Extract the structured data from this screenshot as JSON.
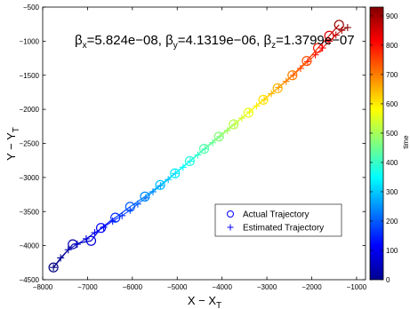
{
  "chart_data": {
    "type": "scatter",
    "title": "",
    "annotation": {
      "parts": [
        {
          "t": "β",
          "sub": false
        },
        {
          "t": "x",
          "sub": true
        },
        {
          "t": "=5.824e−08, ",
          "sub": false
        },
        {
          "t": "β",
          "sub": false
        },
        {
          "t": "y",
          "sub": true
        },
        {
          "t": "=4.1319e−06, ",
          "sub": false
        },
        {
          "t": "β",
          "sub": false
        },
        {
          "t": "z",
          "sub": true
        },
        {
          "t": "=1.3799e−07",
          "sub": false
        }
      ]
    },
    "xlabel": {
      "main": "X − X",
      "sub": "T"
    },
    "ylabel": {
      "main": "Y − Y",
      "sub": "T"
    },
    "xlim": [
      -8000,
      -800
    ],
    "ylim": [
      -4500,
      -500
    ],
    "xticks": [
      -8000,
      -7000,
      -6000,
      -5000,
      -4000,
      -3000,
      -2000,
      -1000
    ],
    "yticks": [
      -4500,
      -4000,
      -3500,
      -3000,
      -2500,
      -2000,
      -1500,
      -1000,
      -500
    ],
    "xtick_labels": [
      "−8000",
      "−7000",
      "−6000",
      "−5000",
      "−4000",
      "−3000",
      "−2000",
      "−1000"
    ],
    "ytick_labels": [
      "−4500",
      "−4000",
      "−3500",
      "−3000",
      "−2500",
      "−2000",
      "−1500",
      "−1000",
      "−500"
    ],
    "grid": false,
    "legend": {
      "placement": "lower-right",
      "entries": [
        {
          "label": "Actual Trajectory",
          "marker": "circle",
          "color": "#0000ff"
        },
        {
          "label": "Estimated Trajectory",
          "marker": "plus",
          "color": "#0000ff"
        }
      ]
    },
    "colorbar": {
      "label": "time",
      "range": [
        0,
        930
      ],
      "ticks": [
        0,
        100,
        200,
        300,
        400,
        500,
        600,
        700,
        800,
        900
      ],
      "tick_labels": [
        "0",
        "100",
        "200",
        "300",
        "400",
        "500",
        "600",
        "700",
        "800",
        "900"
      ],
      "colormap": "jet"
    },
    "series": [
      {
        "name": "Actual Trajectory",
        "marker": "circle",
        "x": [
          -7760,
          -7330,
          -6920,
          -6700,
          -6380,
          -6050,
          -5720,
          -5380,
          -5050,
          -4720,
          -4400,
          -4070,
          -3740,
          -3410,
          -3080,
          -2760,
          -2430,
          -2110,
          -1860,
          -1610,
          -1390
        ],
        "y": [
          -4320,
          -3980,
          -3930,
          -3740,
          -3590,
          -3430,
          -3280,
          -3110,
          -2940,
          -2760,
          -2580,
          -2400,
          -2220,
          -2050,
          -1860,
          -1690,
          -1500,
          -1290,
          -1100,
          -920,
          -760
        ],
        "t": [
          0,
          40,
          80,
          110,
          155,
          200,
          245,
          290,
          335,
          380,
          425,
          470,
          515,
          560,
          605,
          650,
          695,
          740,
          790,
          840,
          910
        ]
      },
      {
        "name": "Estimated Trajectory",
        "marker": "plus",
        "x": [
          -7760,
          -7600,
          -7430,
          -7230,
          -7030,
          -6840,
          -6640,
          -6440,
          -6230,
          -6050,
          -5880,
          -5700,
          -5540,
          -5370,
          -5200,
          -5040,
          -4870,
          -4710,
          -4540,
          -4380,
          -4210,
          -4050,
          -3880,
          -3720,
          -3560,
          -3390,
          -3230,
          -3060,
          -2900,
          -2740,
          -2570,
          -2410,
          -2250,
          -2090,
          -1920,
          -1760,
          -1610,
          -1460,
          -1330,
          -1200
        ],
        "y": [
          -4320,
          -4180,
          -4060,
          -3980,
          -3900,
          -3810,
          -3730,
          -3640,
          -3560,
          -3480,
          -3390,
          -3300,
          -3210,
          -3120,
          -3030,
          -2940,
          -2850,
          -2760,
          -2670,
          -2580,
          -2490,
          -2400,
          -2310,
          -2220,
          -2130,
          -2040,
          -1950,
          -1860,
          -1770,
          -1680,
          -1590,
          -1500,
          -1400,
          -1300,
          -1200,
          -1100,
          -1000,
          -910,
          -840,
          -800
        ],
        "t": [
          0,
          20,
          40,
          60,
          80,
          100,
          120,
          140,
          160,
          180,
          200,
          220,
          245,
          270,
          295,
          320,
          345,
          370,
          395,
          420,
          445,
          470,
          495,
          520,
          545,
          570,
          595,
          620,
          645,
          670,
          695,
          720,
          745,
          770,
          795,
          820,
          845,
          870,
          895,
          920
        ]
      }
    ]
  }
}
